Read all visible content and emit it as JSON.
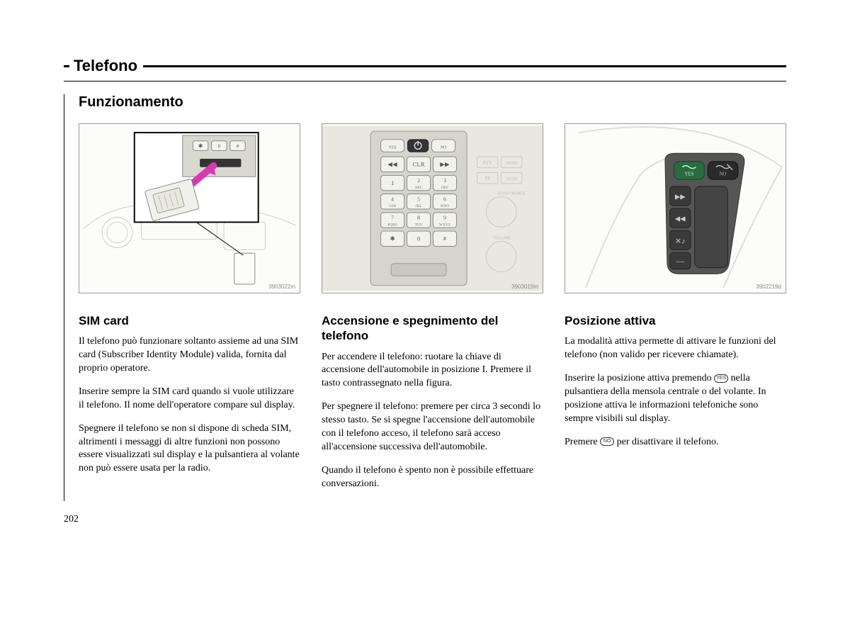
{
  "page": {
    "title": "Telefono",
    "subtitle": "Funzionamento",
    "number": "202"
  },
  "columns": [
    {
      "figref": "3903022m",
      "heading": "SIM card",
      "paragraphs": [
        "Il telefono può funzionare soltanto assieme ad una SIM card (Subscriber Identity Module) valida, fornita dal proprio operatore.",
        "Inserire sempre la SIM card quando si vuole utilizzare il telefono. Il nome dell'operatore compare sul display.",
        "Spegnere il telefono se non si dispone di scheda SIM, altrimenti i messaggi di altre funzioni non possono essere visualizzati sul display e la pulsantiera al volante non può essere usata per la radio."
      ]
    },
    {
      "figref": "3903019m",
      "heading": "Accensione e spegnimento del telefono",
      "paragraphs": [
        "Per accendere il telefono: ruotare la chiave di accensione dell'automobile in posizione I. Premere il tasto contrassegnato nella figura.",
        "Per spegnere il telefono: premere per circa 3 secondi lo stesso tasto. Se si spegne l'accensione dell'automobile con il telefono acceso, il telefono sarà acceso all'accensione successiva dell'automobile.",
        "Quando il telefono è spento non è possibile effettuare conversazioni."
      ]
    },
    {
      "figref": "3902219d",
      "heading": "Posizione attiva",
      "paragraphs": [
        "La modalità attiva permette di attivare le funzioni del telefono (non valido per ricevere chiamate).",
        "Inserire la posizione attiva premendo {yes} nella pulsantiera della mensola centrale o del volante. In posizione attiva le informazioni telefoniche sono sempre visibili sul display.",
        "Premere {no} per disattivare il telefono."
      ]
    }
  ],
  "keypad": {
    "rows": [
      [
        "◀◀",
        "CLR",
        "▶▶"
      ],
      [
        "1",
        "2 ABC",
        "3 DEF"
      ],
      [
        "4 GHI",
        "5 JKL",
        "6 MNO"
      ],
      [
        "7 PQRS",
        "8 TUV",
        "9 WXYZ"
      ],
      [
        "✱",
        "0",
        "#"
      ]
    ],
    "side_labels": [
      "PTY",
      "NEWS",
      "TP",
      "AUTO",
      "BASS/TREBLE",
      "VOLUME"
    ]
  },
  "icons": {
    "yes": "YES",
    "no": "NO"
  }
}
